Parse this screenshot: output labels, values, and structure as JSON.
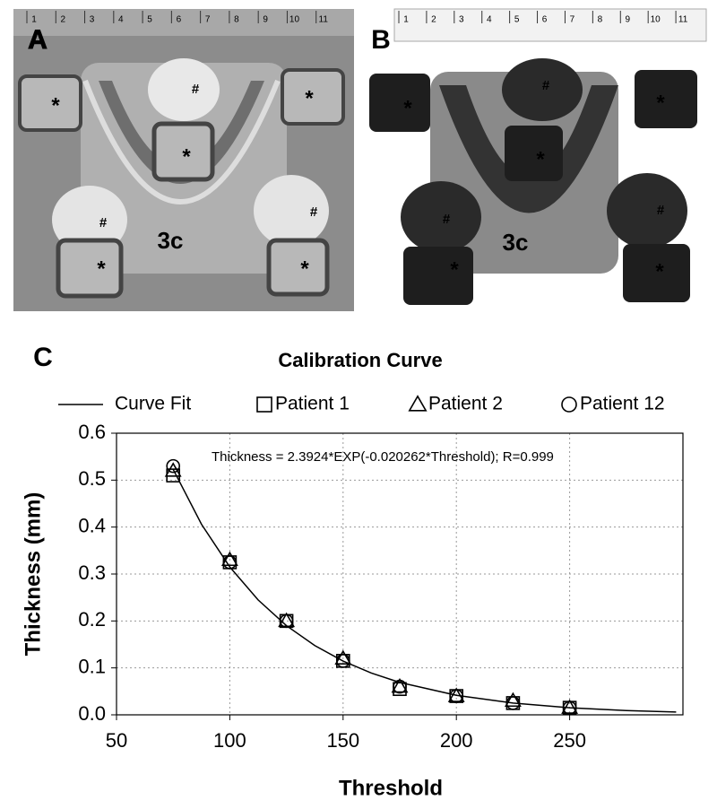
{
  "panels": [
    {
      "label": "A",
      "ruler": [
        "1",
        "2",
        "3",
        "4",
        "5",
        "6",
        "7",
        "8",
        "9",
        "10",
        "11"
      ],
      "markers": [
        "*",
        "#",
        "*",
        "*",
        "#",
        "#",
        "*",
        "*"
      ],
      "tag": "3c"
    },
    {
      "label": "B",
      "ruler": [
        "1",
        "2",
        "3",
        "4",
        "5",
        "6",
        "7",
        "8",
        "9",
        "10",
        "11"
      ],
      "markers": [
        "*",
        "#",
        "*",
        "*",
        "#",
        "#",
        "*",
        "*"
      ],
      "tag": "3c"
    }
  ],
  "chart_data": {
    "type": "scatter",
    "panel_label": "C",
    "title": "Calibration Curve",
    "annotation": "Thickness = 2.3924*EXP(-0.020262*Threshold); R=0.999",
    "xlabel": "Threshold",
    "ylabel": "Thickness (mm)",
    "xlim": [
      50,
      300
    ],
    "xticks": [
      50,
      100,
      150,
      200,
      250
    ],
    "ylim": [
      0,
      0.6
    ],
    "yticks": [
      {
        "value": 0,
        "label": "0.0"
      },
      0.1,
      0.2,
      0.3,
      0.4,
      0.5,
      0.6
    ],
    "grid": true,
    "legend": "top",
    "series": [
      {
        "name": "Curve Fit",
        "color": "#000000",
        "marker": "line",
        "x": [
          75,
          87.5,
          100,
          112.5,
          125,
          137.5,
          150,
          162.5,
          175,
          200,
          225,
          250,
          275,
          297
        ],
        "values": [
          0.523,
          0.406,
          0.315,
          0.2448,
          0.19,
          0.1476,
          0.1145,
          0.0889,
          0.069,
          0.0416,
          0.0251,
          0.0151,
          0.0091,
          0.0059
        ]
      },
      {
        "name": "Patient 1",
        "color": "#000000",
        "marker": "square",
        "x": [
          75,
          100,
          125,
          150,
          175,
          200,
          225,
          250
        ],
        "values": [
          0.51,
          0.325,
          0.2,
          0.115,
          0.055,
          0.04,
          0.025,
          0.015
        ]
      },
      {
        "name": "Patient 2",
        "color": "#000000",
        "marker": "triangle",
        "x": [
          75,
          100,
          125,
          150,
          175,
          200,
          225,
          250
        ],
        "values": [
          0.52,
          0.33,
          0.2,
          0.12,
          0.06,
          0.04,
          0.03,
          0.015
        ]
      },
      {
        "name": "Patient 12",
        "color": "#000000",
        "marker": "circle",
        "x": [
          75,
          100,
          125,
          150,
          175,
          200,
          225,
          250
        ],
        "values": [
          0.53,
          0.325,
          0.2,
          0.115,
          0.06,
          0.04,
          0.025,
          0.015
        ]
      }
    ]
  }
}
